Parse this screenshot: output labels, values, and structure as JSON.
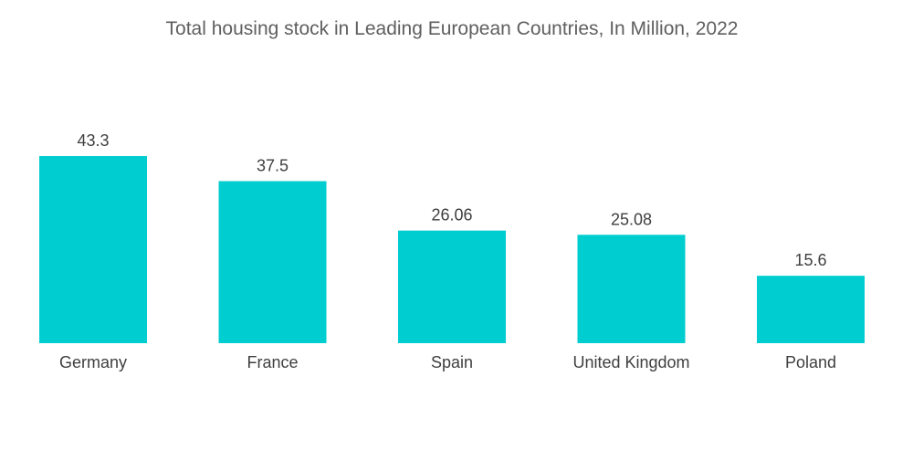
{
  "chart_data": {
    "type": "bar",
    "title": "Total housing stock in Leading European Countries, In Million, 2022",
    "categories": [
      "Germany",
      "France",
      "Spain",
      "United Kingdom",
      "Poland"
    ],
    "values": [
      43.3,
      37.5,
      26.06,
      25.08,
      15.6
    ],
    "value_labels": [
      "43.3",
      "37.5",
      "26.06",
      "25.08",
      "15.6"
    ],
    "ylim": [
      0,
      43.3
    ],
    "grid": false,
    "legend": "none",
    "bar_color": "#00cdd0"
  }
}
